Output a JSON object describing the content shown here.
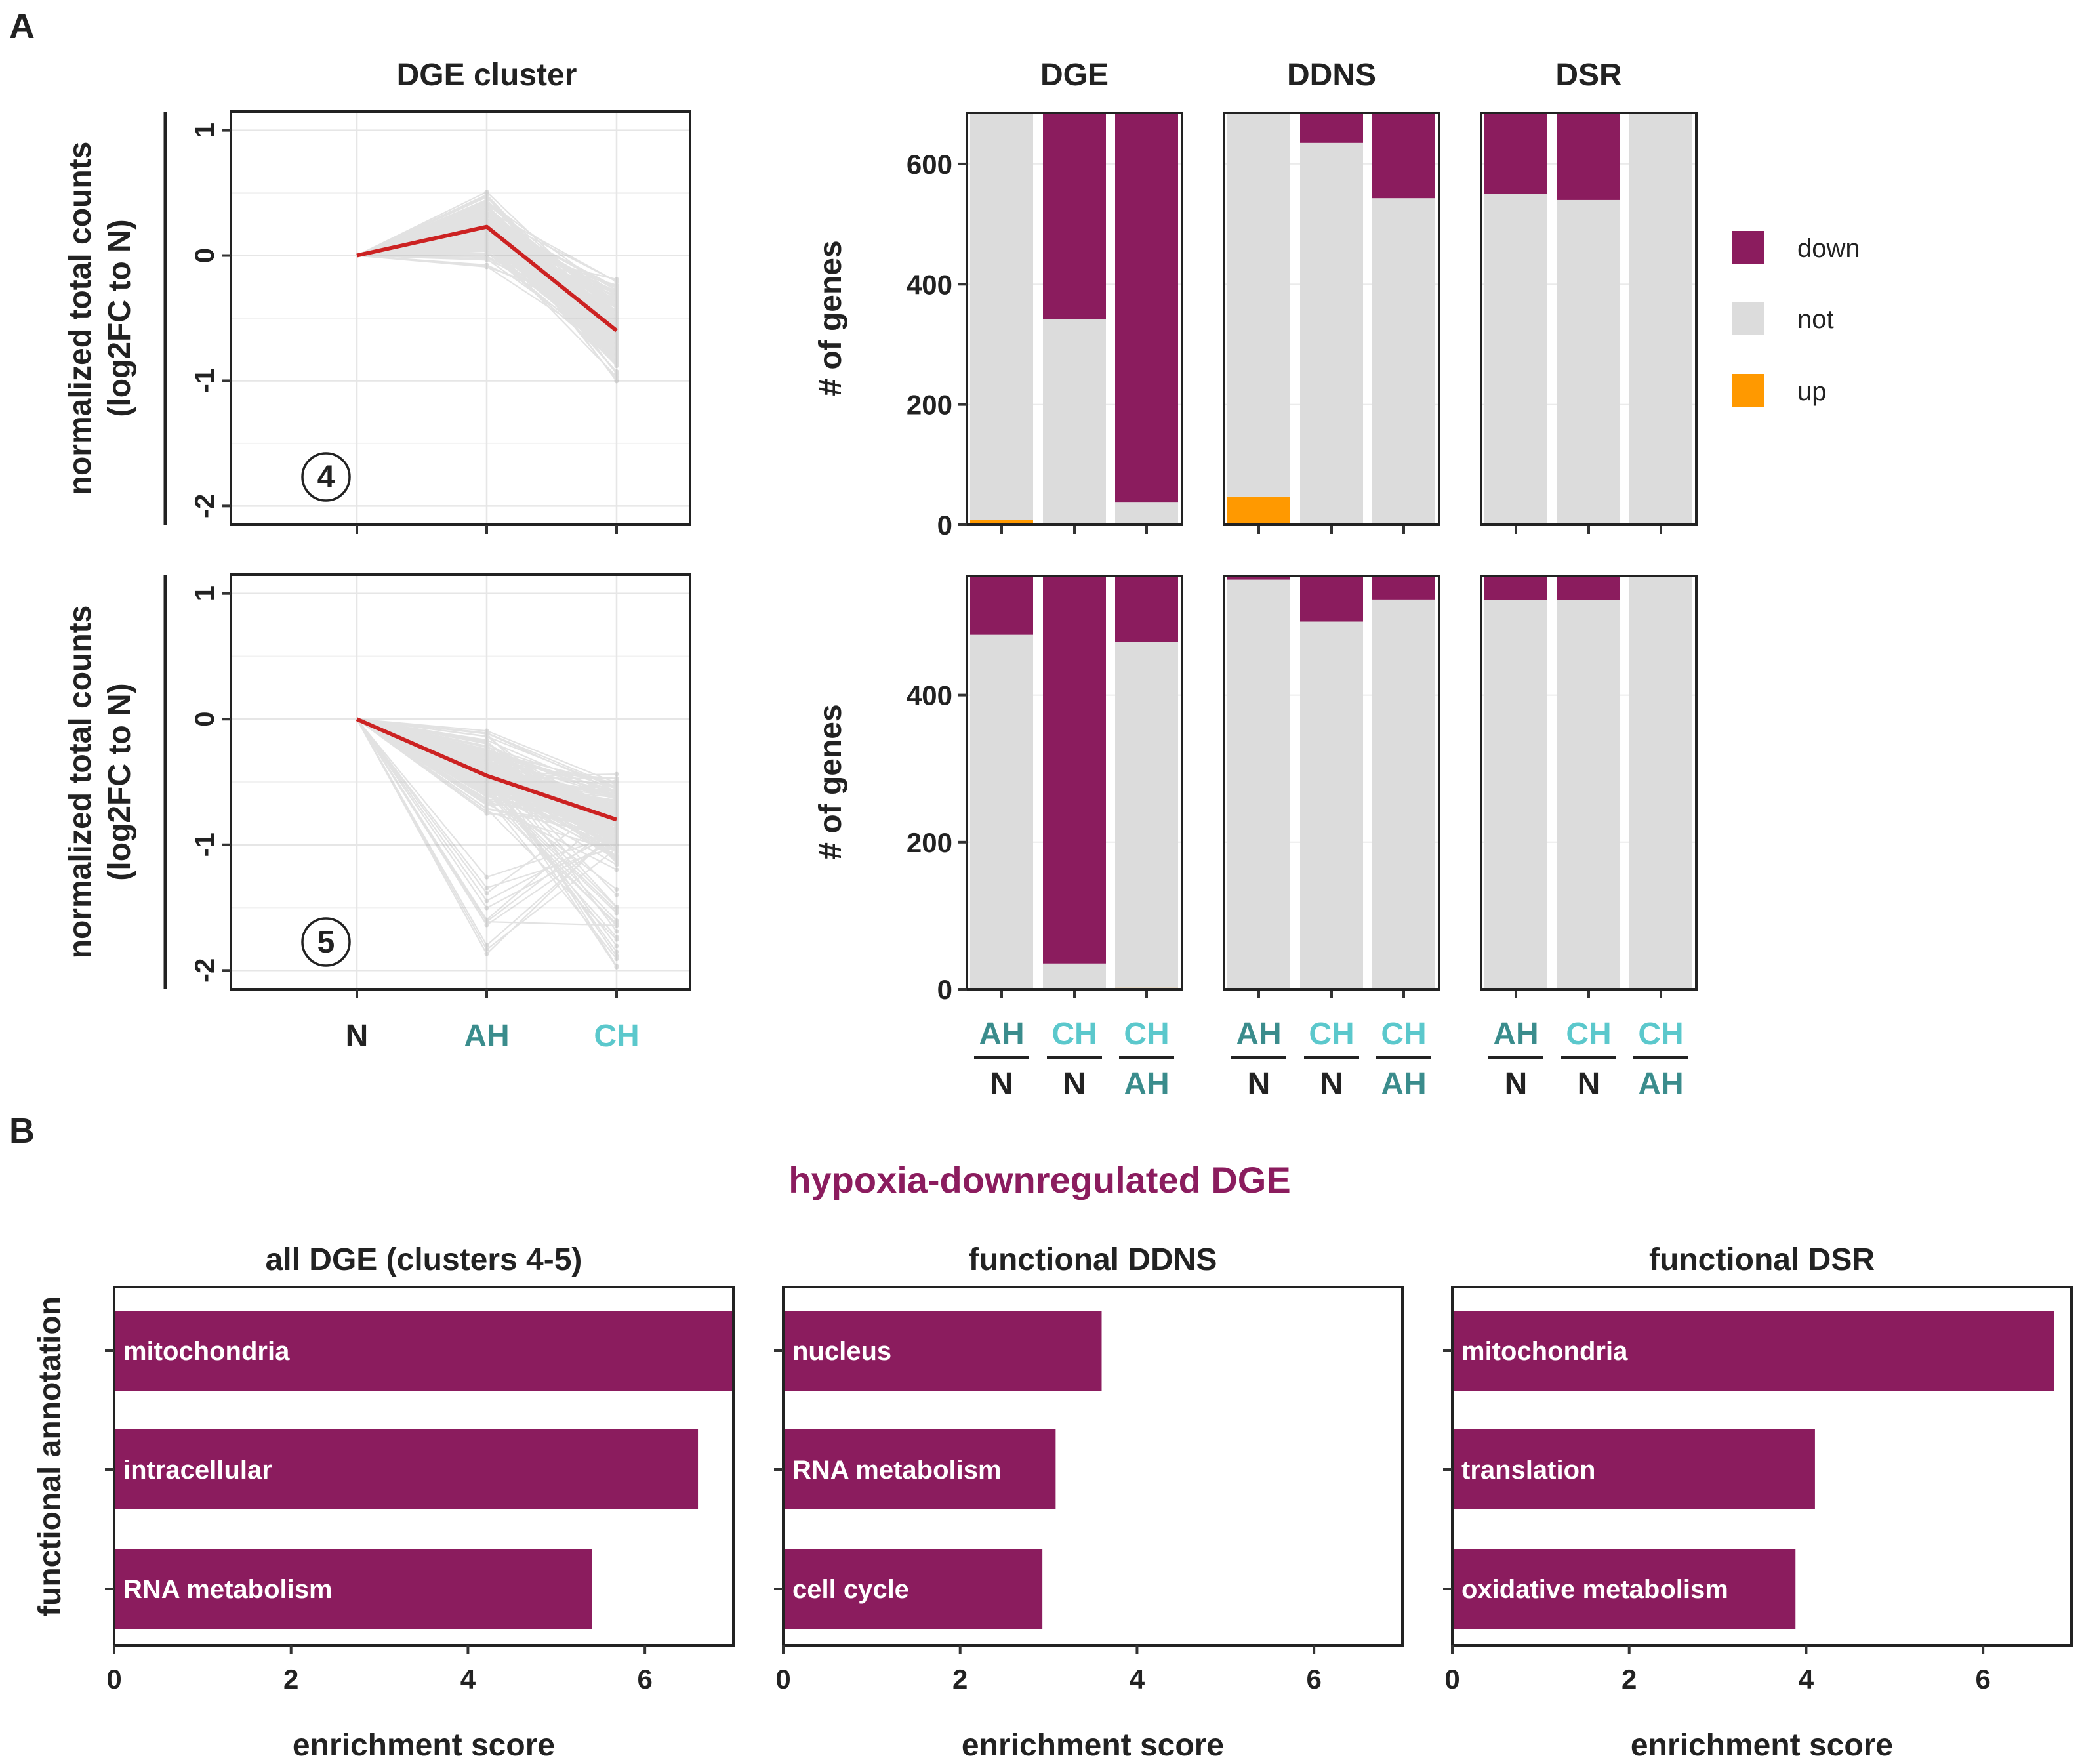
{
  "panel_a": {
    "letter": "A",
    "cluster_title": "DGE cluster",
    "line_ylabel_1": "normalized total counts",
    "line_ylabel_2": "(log2FC to N)",
    "bar_ylabel": "# of genes",
    "bar_strips": [
      "DGE",
      "DDNS",
      "DSR"
    ],
    "xcats": [
      "N",
      "AH",
      "CH"
    ],
    "bar_comparisons": [
      {
        "top": "AH",
        "bottom": "N"
      },
      {
        "top": "CH",
        "bottom": "N"
      },
      {
        "top": "CH",
        "bottom": "AH"
      }
    ]
  },
  "panel_b": {
    "letter": "B",
    "title": "hypoxia-downregulated DGE",
    "ylabel": "functional annotation",
    "xlabel": "enrichment score"
  },
  "colors": {
    "down": "#8B1C5E",
    "not": "#DCDCDC",
    "up": "#FF9900",
    "mean_line": "#CC2222",
    "gene_lines": "#B8B8B8",
    "ah": "#3A8C8C",
    "ch": "#5BC8CC",
    "title_purple": "#8B1C5E"
  },
  "chart_data": [
    {
      "type": "line",
      "id": "cluster-4",
      "cluster_label": "4",
      "x": [
        "N",
        "AH",
        "CH"
      ],
      "mean_series": {
        "name": "cluster mean",
        "values": [
          0,
          0.23,
          -0.6
        ]
      },
      "ylim": [
        -2.15,
        1.15
      ],
      "yticks": [
        1,
        0,
        -1,
        -2
      ],
      "ytick_labels": [
        "1",
        "0",
        "-1",
        "-2"
      ]
    },
    {
      "type": "line",
      "id": "cluster-5",
      "cluster_label": "5",
      "x": [
        "N",
        "AH",
        "CH"
      ],
      "mean_series": {
        "name": "cluster mean",
        "values": [
          0,
          -0.45,
          -0.8
        ]
      },
      "ylim": [
        -2.15,
        1.15
      ],
      "yticks": [
        1,
        0,
        -1,
        -2
      ],
      "ytick_labels": [
        "1",
        "0",
        "-1",
        "-2"
      ]
    },
    {
      "type": "bar",
      "stacked": true,
      "id": "cluster-4-bars",
      "total": 685,
      "ylim": [
        0,
        685
      ],
      "yticks": [
        0,
        200,
        400,
        600
      ],
      "ytick_labels": [
        "0",
        "200",
        "400",
        "600"
      ],
      "legend": [
        "down",
        "not",
        "up"
      ],
      "panels": [
        {
          "name": "DGE",
          "bars": [
            {
              "comparison": "AH/N",
              "up": 8,
              "down": 0
            },
            {
              "comparison": "CH/N",
              "up": 0,
              "down": 343
            },
            {
              "comparison": "CH/AH",
              "up": 0,
              "down": 647
            }
          ]
        },
        {
          "name": "DDNS",
          "bars": [
            {
              "comparison": "AH/N",
              "up": 47,
              "down": 0
            },
            {
              "comparison": "CH/N",
              "up": 0,
              "down": 50
            },
            {
              "comparison": "CH/AH",
              "up": 0,
              "down": 142
            }
          ]
        },
        {
          "name": "DSR",
          "bars": [
            {
              "comparison": "AH/N",
              "up": 0,
              "down": 135
            },
            {
              "comparison": "CH/N",
              "up": 0,
              "down": 145
            },
            {
              "comparison": "CH/AH",
              "up": 0,
              "down": 0
            }
          ]
        }
      ]
    },
    {
      "type": "bar",
      "stacked": true,
      "id": "cluster-5-bars",
      "total": 562,
      "ylim": [
        0,
        562
      ],
      "yticks": [
        0,
        200,
        400
      ],
      "ytick_labels": [
        "0",
        "200",
        "400"
      ],
      "legend": [
        "down",
        "not",
        "up"
      ],
      "panels": [
        {
          "name": "DGE",
          "bars": [
            {
              "comparison": "AH/N",
              "up": 0,
              "down": 80
            },
            {
              "comparison": "CH/N",
              "up": 0,
              "down": 527
            },
            {
              "comparison": "CH/AH",
              "up": 2,
              "down": 90
            }
          ]
        },
        {
          "name": "DDNS",
          "bars": [
            {
              "comparison": "AH/N",
              "up": 0,
              "down": 5
            },
            {
              "comparison": "CH/N",
              "up": 0,
              "down": 62
            },
            {
              "comparison": "CH/AH",
              "up": 0,
              "down": 32
            }
          ]
        },
        {
          "name": "DSR",
          "bars": [
            {
              "comparison": "AH/N",
              "up": 0,
              "down": 33
            },
            {
              "comparison": "CH/N",
              "up": 0,
              "down": 33
            },
            {
              "comparison": "CH/AH",
              "up": 0,
              "down": 0
            }
          ]
        }
      ]
    },
    {
      "type": "bar",
      "orientation": "horizontal",
      "id": "enrich-all-dge",
      "title": "all DGE  (clusters 4-5)",
      "xlabel": "enrichment score",
      "xlim": [
        0,
        7
      ],
      "xticks": [
        0,
        2,
        4,
        6
      ],
      "categories": [
        "mitochondria",
        "intracellular",
        "RNA metabolism"
      ],
      "values": [
        7.0,
        6.6,
        5.4
      ]
    },
    {
      "type": "bar",
      "orientation": "horizontal",
      "id": "enrich-ddns",
      "title": "functional DDNS",
      "xlabel": "enrichment score",
      "xlim": [
        0,
        7
      ],
      "xticks": [
        0,
        2,
        4,
        6
      ],
      "categories": [
        "nucleus",
        "RNA metabolism",
        "cell cycle"
      ],
      "values": [
        3.6,
        3.08,
        2.93
      ]
    },
    {
      "type": "bar",
      "orientation": "horizontal",
      "id": "enrich-dsr",
      "title": "functional DSR",
      "xlabel": "enrichment score",
      "xlim": [
        0,
        7
      ],
      "xticks": [
        0,
        2,
        4,
        6
      ],
      "categories": [
        "mitochondria",
        "translation",
        "oxidative metabolism"
      ],
      "values": [
        6.8,
        4.1,
        3.88
      ]
    }
  ]
}
